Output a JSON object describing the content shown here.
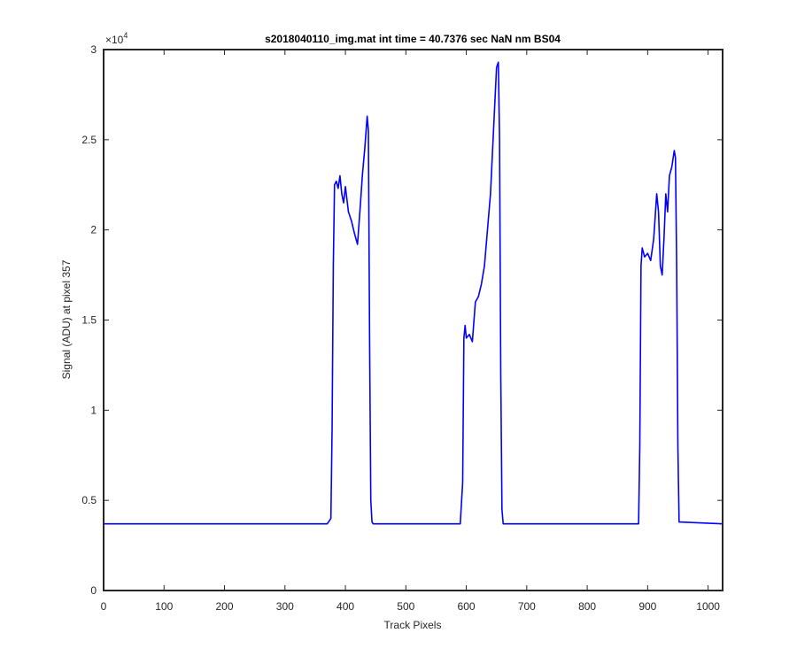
{
  "chart_data": {
    "type": "line",
    "title": "s2018040110_img.mat int time = 40.7376 sec  NaN nm BS04",
    "xlabel": "Track Pixels",
    "ylabel": "Signal (ADU) at pixel 357",
    "xlim": [
      0,
      1024
    ],
    "ylim": [
      0,
      30000
    ],
    "y_exponent_label": "×10",
    "y_exponent_power": "4",
    "x_ticks": [
      0,
      100,
      200,
      300,
      400,
      500,
      600,
      700,
      800,
      900,
      1000
    ],
    "x_tick_labels": [
      "0",
      "100",
      "200",
      "300",
      "400",
      "500",
      "600",
      "700",
      "800",
      "900",
      "1000"
    ],
    "y_ticks": [
      0,
      5000,
      10000,
      15000,
      20000,
      25000,
      30000
    ],
    "y_tick_labels": [
      "0",
      "0.5",
      "1",
      "1.5",
      "2",
      "2.5",
      "3"
    ],
    "grid": false,
    "line_color": "#0000ff",
    "series": [
      {
        "x": [
          0,
          100,
          200,
          300,
          370,
          376,
          378,
          380,
          382,
          385,
          388,
          391,
          394,
          397,
          400,
          405,
          410,
          415,
          420,
          425,
          428,
          432,
          436,
          438,
          440,
          442,
          444,
          446,
          450,
          500,
          590,
          594,
          596,
          598,
          600,
          605,
          610,
          615,
          620,
          625,
          630,
          635,
          640,
          645,
          650,
          653,
          655,
          657,
          659,
          661,
          700,
          800,
          885,
          887,
          889,
          891,
          895,
          900,
          905,
          910,
          915,
          918,
          921,
          924,
          927,
          930,
          933,
          936,
          940,
          944,
          946,
          948,
          950,
          952,
          1024
        ],
        "y": [
          3700,
          3700,
          3700,
          3700,
          3700,
          4000,
          9000,
          18000,
          22500,
          22700,
          22300,
          23000,
          22000,
          21500,
          22400,
          21000,
          20500,
          19800,
          19200,
          21500,
          23000,
          24500,
          26300,
          25500,
          14000,
          5000,
          3800,
          3700,
          3700,
          3700,
          3700,
          6000,
          14000,
          14700,
          14000,
          14200,
          13800,
          16000,
          16300,
          17000,
          18000,
          20000,
          22000,
          25500,
          29000,
          29300,
          25000,
          12000,
          4500,
          3700,
          3700,
          3700,
          3700,
          8000,
          18000,
          19000,
          18500,
          18700,
          18300,
          19500,
          22000,
          21000,
          18000,
          17500,
          19500,
          22000,
          21000,
          23000,
          23500,
          24400,
          24000,
          18000,
          8000,
          3800,
          3700
        ]
      }
    ]
  }
}
